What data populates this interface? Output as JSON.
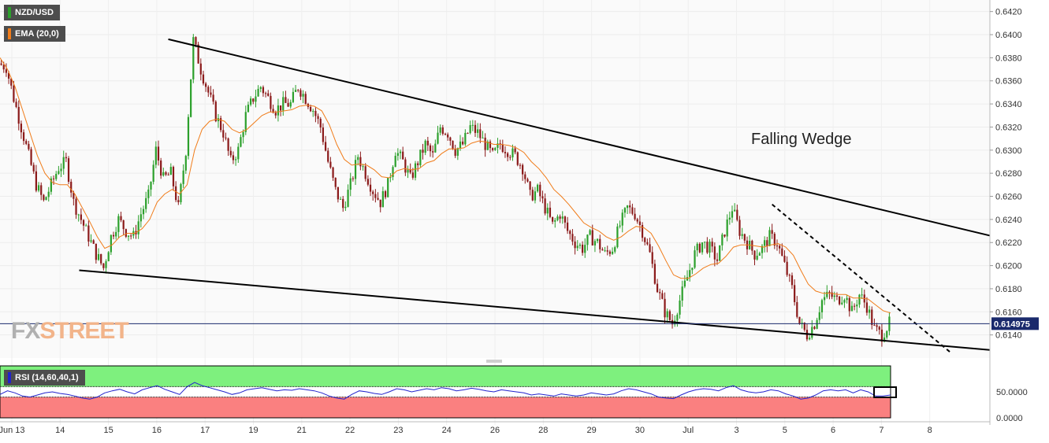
{
  "symbol": "NZD/USD",
  "indicator_label": "EMA (20,0)",
  "rsi_label": "RSI (14,60,40,1)",
  "last_price": "0.614975",
  "watermark": {
    "fx": "FX",
    "street": "STREET"
  },
  "annotation": "Falling Wedge",
  "colors": {
    "bull": "#2ca02c",
    "bear": "#8b1a1a",
    "ema": "#f07c1a",
    "rsi_line": "#2222cc",
    "rsi_upper": "#7ef07e",
    "rsi_lower": "#fa8080",
    "price_line": "#1a2a6c"
  },
  "chart_data": {
    "type": "candlestick",
    "price_axis": {
      "min": 0.612,
      "max": 0.643,
      "ticks": [
        "0.6140",
        "0.6160",
        "0.6180",
        "0.6200",
        "0.6220",
        "0.6240",
        "0.6260",
        "0.6280",
        "0.6300",
        "0.6320",
        "0.6340",
        "0.6360",
        "0.6380",
        "0.6400",
        "0.6420"
      ]
    },
    "x_ticks": [
      "Jun 13",
      "14",
      "15",
      "16",
      "17",
      "19",
      "21",
      "22",
      "23",
      "24",
      "26",
      "28",
      "29",
      "30",
      "Jul",
      "3",
      "5",
      "6",
      "7",
      "8"
    ],
    "close_path": [
      0.6375,
      0.6372,
      0.6345,
      0.632,
      0.6295,
      0.627,
      0.6255,
      0.627,
      0.6285,
      0.629,
      0.6255,
      0.624,
      0.6225,
      0.621,
      0.6198,
      0.6225,
      0.624,
      0.623,
      0.6225,
      0.6245,
      0.626,
      0.63,
      0.6275,
      0.628,
      0.625,
      0.63,
      0.6395,
      0.637,
      0.635,
      0.633,
      0.6315,
      0.629,
      0.63,
      0.633,
      0.6345,
      0.6355,
      0.6345,
      0.6335,
      0.634,
      0.634,
      0.6355,
      0.6345,
      0.6335,
      0.632,
      0.629,
      0.6265,
      0.625,
      0.627,
      0.6295,
      0.628,
      0.6265,
      0.6255,
      0.627,
      0.63,
      0.629,
      0.6275,
      0.629,
      0.6305,
      0.6295,
      0.632,
      0.6315,
      0.63,
      0.6305,
      0.632,
      0.6315,
      0.6305,
      0.6295,
      0.6305,
      0.63,
      0.6295,
      0.6285,
      0.626,
      0.6265,
      0.625,
      0.6235,
      0.6245,
      0.623,
      0.622,
      0.6215,
      0.6225,
      0.622,
      0.621,
      0.6215,
      0.6235,
      0.625,
      0.6245,
      0.623,
      0.621,
      0.618,
      0.616,
      0.615,
      0.617,
      0.619,
      0.621,
      0.622,
      0.6215,
      0.6205,
      0.623,
      0.625,
      0.623,
      0.622,
      0.621,
      0.6215,
      0.6225,
      0.622,
      0.62,
      0.618,
      0.615,
      0.614,
      0.615,
      0.617,
      0.6175,
      0.617,
      0.6175,
      0.616,
      0.6175,
      0.6165,
      0.6145,
      0.614,
      0.615
    ],
    "ema_path": [
      0.638,
      0.637,
      0.6355,
      0.6335,
      0.6315,
      0.6295,
      0.628,
      0.6272,
      0.627,
      0.627,
      0.6262,
      0.625,
      0.6238,
      0.6225,
      0.6215,
      0.6218,
      0.6225,
      0.6228,
      0.6228,
      0.6232,
      0.624,
      0.6255,
      0.6262,
      0.6266,
      0.6262,
      0.627,
      0.63,
      0.6318,
      0.6325,
      0.6327,
      0.6325,
      0.6318,
      0.6315,
      0.6318,
      0.6324,
      0.633,
      0.6333,
      0.6333,
      0.6334,
      0.6335,
      0.6338,
      0.6339,
      0.6338,
      0.6334,
      0.6322,
      0.6305,
      0.6292,
      0.6287,
      0.6288,
      0.6287,
      0.6283,
      0.6277,
      0.6276,
      0.6282,
      0.6284,
      0.6283,
      0.6284,
      0.6289,
      0.6291,
      0.6297,
      0.6301,
      0.6301,
      0.6302,
      0.6306,
      0.6308,
      0.6307,
      0.6305,
      0.6305,
      0.6304,
      0.6302,
      0.6298,
      0.629,
      0.6284,
      0.6276,
      0.6266,
      0.626,
      0.6253,
      0.6245,
      0.6237,
      0.6233,
      0.623,
      0.6225,
      0.6222,
      0.6225,
      0.623,
      0.6234,
      0.6233,
      0.6228,
      0.6217,
      0.6204,
      0.6192,
      0.6189,
      0.6189,
      0.6193,
      0.6198,
      0.6201,
      0.6202,
      0.6208,
      0.6216,
      0.6218,
      0.6218,
      0.6217,
      0.6216,
      0.6218,
      0.6219,
      0.6216,
      0.6209,
      0.6196,
      0.6184,
      0.6178,
      0.6176,
      0.6176,
      0.6175,
      0.6175,
      0.6172,
      0.6172,
      0.6171,
      0.6166,
      0.6161,
      0.6159
    ],
    "trendlines": [
      {
        "name": "wedge-upper",
        "points": [
          [
            0.17,
            0.6396
          ],
          [
            1.0,
            0.6226
          ]
        ]
      },
      {
        "name": "wedge-lower",
        "points": [
          [
            0.08,
            0.6196
          ],
          [
            1.0,
            0.6127
          ]
        ]
      },
      {
        "name": "dashed-resistance",
        "dashed": true,
        "points": [
          [
            0.78,
            0.6253
          ],
          [
            0.96,
            0.6125
          ]
        ]
      }
    ],
    "rsi": {
      "axis_ticks": [
        "50.0000",
        "0.0000"
      ],
      "upper": 60,
      "lower": 40,
      "values": [
        45,
        52,
        48,
        42,
        40,
        44,
        48,
        50,
        47,
        45,
        42,
        38,
        36,
        40,
        48,
        52,
        55,
        50,
        46,
        54,
        58,
        62,
        55,
        50,
        45,
        60,
        68,
        62,
        58,
        54,
        50,
        45,
        48,
        54,
        56,
        58,
        55,
        52,
        54,
        53,
        56,
        54,
        52,
        48,
        42,
        38,
        36,
        45,
        52,
        50,
        47,
        45,
        50,
        56,
        54,
        50,
        53,
        56,
        54,
        58,
        56,
        52,
        54,
        57,
        55,
        52,
        50,
        54,
        52,
        50,
        48,
        44,
        46,
        44,
        42,
        46,
        44,
        42,
        44,
        48,
        46,
        44,
        46,
        52,
        56,
        54,
        50,
        46,
        40,
        38,
        37,
        44,
        50,
        54,
        56,
        55,
        52,
        58,
        62,
        54,
        50,
        48,
        50,
        54,
        52,
        46,
        42,
        36,
        38,
        44,
        52,
        54,
        52,
        54,
        48,
        54,
        50,
        42,
        42,
        44
      ]
    },
    "last_price": 0.614975
  }
}
